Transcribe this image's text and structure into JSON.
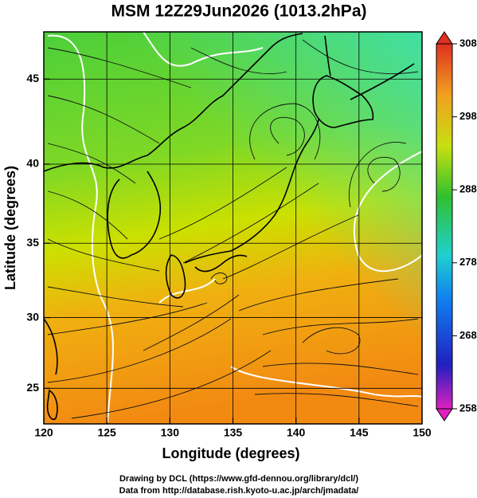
{
  "chart_data": {
    "type": "map",
    "projection": "mercator",
    "title": "MSM 12Z29Jun2026 (1013.2hPa)",
    "x_label": "Longitude (degrees)",
    "y_label": "Latitude  (degrees)",
    "xlim": [
      120,
      150
    ],
    "ylim": [
      22.4,
      47.6
    ],
    "xticks": [
      120,
      125,
      130,
      135,
      140,
      145,
      150
    ],
    "yticks": [
      25,
      30,
      35,
      40,
      45
    ],
    "grid": true,
    "colorbar": {
      "lim": [
        258,
        308
      ],
      "ticks": [
        258,
        268,
        278,
        288,
        298,
        308
      ]
    },
    "credits": [
      "Drawing by DCL (https://www.gfd-dennou.org/library/dcl/)",
      "Data from http://database.rish.kyoto-u.ac.jp/arch/jmadata/"
    ]
  }
}
